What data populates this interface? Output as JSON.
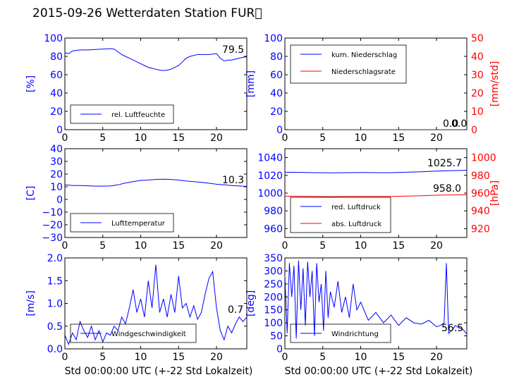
{
  "title": "2015-09-26 Wetterdaten Station FUR\u0000",
  "colors": {
    "primary": "#0000ff",
    "secondary": "#ff0000",
    "axis": "#000000"
  },
  "chart_data": [
    {
      "id": "humidity",
      "type": "line",
      "x_range": [
        0,
        24
      ],
      "xticks": [
        "0",
        "5",
        "10",
        "15",
        "20"
      ],
      "ylim": [
        0,
        100
      ],
      "yticks": [
        "0",
        "20",
        "40",
        "60",
        "80",
        "100"
      ],
      "ylabel": "[%]",
      "legend": "bottom-left",
      "series": [
        {
          "name": "rel. Luftfeuchte",
          "axis": "left",
          "color": "#0000ff",
          "x": [
            0,
            0.5,
            1,
            2,
            3,
            4,
            5,
            6,
            6.5,
            7,
            7.5,
            8,
            8.5,
            9,
            9.5,
            10,
            10.5,
            11,
            11.5,
            12,
            12.5,
            13,
            13.5,
            14,
            14.5,
            15,
            15.5,
            16,
            16.5,
            17,
            17.5,
            18,
            19,
            20,
            20.5,
            21,
            21.5,
            22,
            22.5,
            23,
            23.5,
            24
          ],
          "y": [
            84,
            83,
            86,
            87,
            87,
            87.5,
            88,
            88.5,
            88,
            85,
            82,
            80,
            78,
            76,
            74,
            72,
            70,
            68,
            67,
            66,
            65,
            64.5,
            65,
            66,
            68,
            70,
            74,
            78,
            80,
            81,
            82,
            82,
            82,
            83,
            78,
            75,
            76,
            76,
            77,
            78,
            79,
            79.5
          ]
        }
      ],
      "last_value": "79.5"
    },
    {
      "id": "precipitation",
      "type": "line",
      "x_range": [
        0,
        24
      ],
      "xticks": [
        "0",
        "5",
        "10",
        "15",
        "20"
      ],
      "ylim": [
        0,
        100
      ],
      "yticks": [
        "0",
        "20",
        "40",
        "60",
        "80",
        "100"
      ],
      "ylabel": "[mm]",
      "ylim_right": [
        0,
        50
      ],
      "yticks_right": [
        "0",
        "10",
        "20",
        "30",
        "40",
        "50"
      ],
      "ylabel_right": "[mm/std]",
      "legend": "top-left",
      "series": [
        {
          "name": "kum. Niederschlag",
          "axis": "left",
          "color": "#0000ff",
          "x": [
            0,
            24
          ],
          "y": [
            0,
            0
          ]
        },
        {
          "name": "Niederschlagsrate",
          "axis": "right",
          "color": "#ff0000",
          "x": [
            0,
            24
          ],
          "y": [
            0,
            0
          ]
        }
      ],
      "last_value": "0.0",
      "last_value_right": "0.0"
    },
    {
      "id": "temperature",
      "type": "line",
      "x_range": [
        0,
        24
      ],
      "xticks": [
        "0",
        "5",
        "10",
        "15",
        "20"
      ],
      "ylim": [
        -30,
        40
      ],
      "yticks": [
        "−30",
        "−20",
        "−10",
        "0",
        "10",
        "20",
        "30",
        "40"
      ],
      "ylabel": "[C]",
      "legend": "bottom-left",
      "series": [
        {
          "name": "Lufttemperatur",
          "axis": "left",
          "color": "#0000ff",
          "x": [
            0,
            1,
            2,
            3,
            4,
            5,
            6,
            7,
            8,
            9,
            10,
            11,
            12,
            13,
            14,
            15,
            16,
            17,
            18,
            19,
            20,
            21,
            22,
            23,
            24
          ],
          "y": [
            11.5,
            11,
            11,
            10.8,
            10.5,
            10.5,
            10.6,
            11.5,
            13,
            14,
            15,
            15.3,
            15.8,
            16,
            15.8,
            15.3,
            14.5,
            14,
            13.5,
            12.8,
            12,
            11.5,
            11,
            10.6,
            10.3
          ]
        }
      ],
      "last_value": "10.3"
    },
    {
      "id": "pressure",
      "type": "line",
      "x_range": [
        0,
        24
      ],
      "xticks": [
        "0",
        "5",
        "10",
        "15",
        "20"
      ],
      "ylim": [
        950,
        1050
      ],
      "yticks": [
        "960",
        "980",
        "1000",
        "1020",
        "1040"
      ],
      "ylim_right": [
        910,
        1010
      ],
      "yticks_right": [
        "920",
        "940",
        "960",
        "980",
        "1000"
      ],
      "ylabel_right": "[hPa]",
      "legend": "bottom-left",
      "series": [
        {
          "name": "red. Luftdruck",
          "axis": "left",
          "color": "#0000ff",
          "x": [
            0,
            2,
            4,
            6,
            8,
            10,
            12,
            14,
            16,
            18,
            20,
            22,
            24
          ],
          "y": [
            1023.5,
            1023.3,
            1023.0,
            1022.8,
            1023.0,
            1023.2,
            1023.0,
            1023.0,
            1023.5,
            1024.0,
            1024.8,
            1025.3,
            1025.7
          ]
        },
        {
          "name": "abs. Luftdruck",
          "axis": "right",
          "color": "#ff0000",
          "x": [
            0,
            2,
            4,
            6,
            8,
            10,
            12,
            14,
            16,
            18,
            20,
            22,
            24
          ],
          "y": [
            956.5,
            956.4,
            956.2,
            956.0,
            956.2,
            956.3,
            956.2,
            956.3,
            956.7,
            957.1,
            957.6,
            957.9,
            958.0
          ]
        }
      ],
      "last_value": "1025.7",
      "last_value_right": "958.0"
    },
    {
      "id": "wind_speed",
      "type": "line",
      "x_range": [
        0,
        24
      ],
      "xticks": [
        "0",
        "5",
        "10",
        "15",
        "20"
      ],
      "xlabel": "Std 00:00:00 UTC (+-22 Std Lokalzeit)",
      "ylim": [
        0,
        2.0
      ],
      "yticks": [
        "0.0",
        "0.5",
        "1.0",
        "1.5",
        "2.0"
      ],
      "ylabel": "[m/s]",
      "legend": "bottom-center",
      "series": [
        {
          "name": "Windgeschwindigkeit",
          "axis": "left",
          "color": "#0000ff",
          "x": [
            0,
            0.5,
            1,
            1.5,
            2,
            2.5,
            3,
            3.5,
            4,
            4.5,
            5,
            5.5,
            6,
            6.5,
            7,
            7.5,
            8,
            8.5,
            9,
            9.5,
            10,
            10.5,
            11,
            11.5,
            12,
            12.5,
            13,
            13.5,
            14,
            14.5,
            15,
            15.5,
            16,
            16.5,
            17,
            17.5,
            18,
            18.5,
            19,
            19.5,
            20,
            20.5,
            21,
            21.5,
            22,
            22.5,
            23,
            23.5,
            24
          ],
          "y": [
            0.3,
            0.1,
            0.35,
            0.2,
            0.6,
            0.4,
            0.25,
            0.5,
            0.2,
            0.4,
            0.15,
            0.35,
            0.3,
            0.5,
            0.4,
            0.7,
            0.55,
            0.9,
            1.3,
            0.8,
            1.1,
            0.7,
            1.5,
            0.9,
            1.85,
            0.8,
            1.1,
            0.7,
            1.2,
            0.8,
            1.6,
            0.9,
            1.0,
            0.7,
            0.95,
            0.65,
            0.8,
            1.2,
            1.55,
            1.7,
            0.9,
            0.4,
            0.2,
            0.5,
            0.35,
            0.55,
            0.7,
            0.6,
            0.7
          ]
        }
      ],
      "last_value": "0.7"
    },
    {
      "id": "wind_direction",
      "type": "line",
      "x_range": [
        0,
        24
      ],
      "xticks": [
        "0",
        "5",
        "10",
        "15",
        "20"
      ],
      "xlabel": "Std 00:00:00 UTC (+-22 Std Lokalzeit)",
      "ylim": [
        0,
        350
      ],
      "yticks": [
        "0",
        "50",
        "100",
        "150",
        "200",
        "250",
        "300",
        "350"
      ],
      "ylabel": "[deg]",
      "legend": "bottom-center",
      "series": [
        {
          "name": "Windrichtung",
          "axis": "left",
          "color": "#0000ff",
          "x": [
            0,
            0.3,
            0.6,
            0.9,
            1.2,
            1.5,
            1.8,
            2.1,
            2.4,
            2.7,
            3,
            3.3,
            3.6,
            3.9,
            4.2,
            4.5,
            4.8,
            5.1,
            5.4,
            5.7,
            6,
            6.5,
            7,
            7.5,
            8,
            8.5,
            9,
            9.5,
            10,
            11,
            12,
            13,
            14,
            15,
            16,
            17,
            18,
            19,
            20,
            20.5,
            21,
            21.3,
            21.6,
            22,
            22.5,
            23,
            23.5,
            24
          ],
          "y": [
            280,
            60,
            330,
            200,
            320,
            40,
            340,
            150,
            310,
            90,
            335,
            200,
            300,
            50,
            330,
            180,
            250,
            70,
            300,
            120,
            220,
            160,
            260,
            140,
            200,
            120,
            250,
            150,
            180,
            110,
            140,
            100,
            130,
            90,
            120,
            100,
            95,
            110,
            85,
            90,
            100,
            330,
            60,
            70,
            90,
            80,
            75,
            56.5
          ]
        }
      ],
      "last_value": "56.5"
    }
  ]
}
